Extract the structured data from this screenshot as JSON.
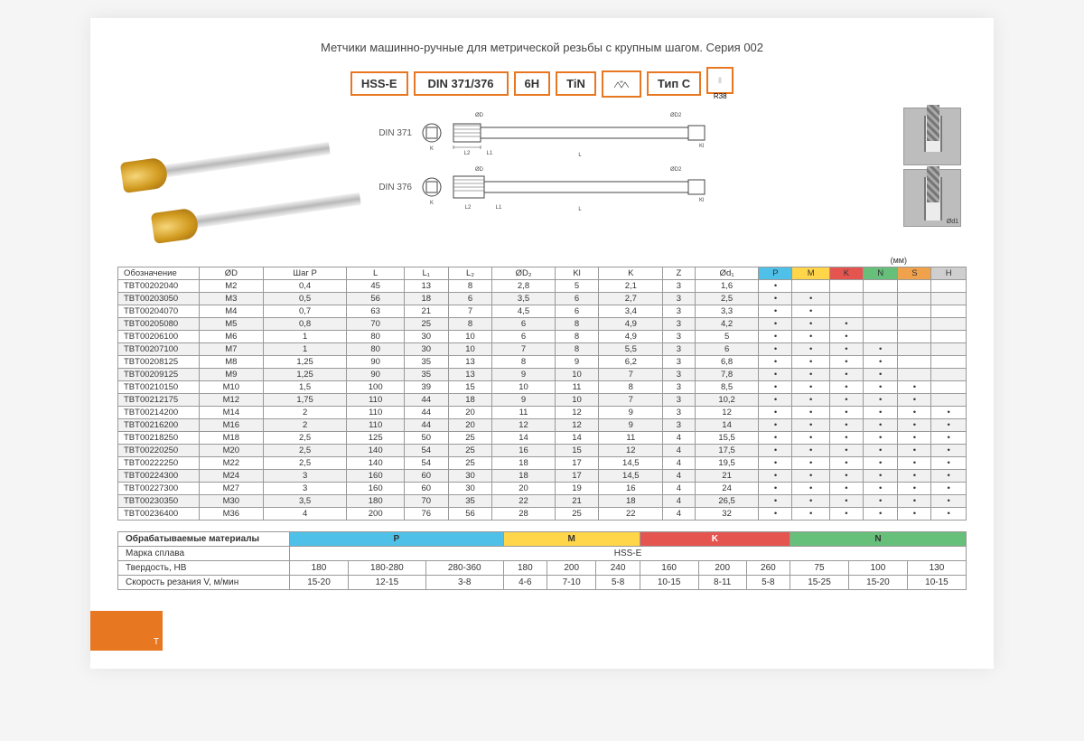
{
  "title": "Метчики машинно-ручные для метрической резьбы с крупным шагом. Серия 002",
  "spec_boxes": [
    "HSS-E",
    "DIN 371/376",
    "6H",
    "TiN"
  ],
  "spec_type": "Тип C",
  "spec_r": "R38",
  "din_labels": [
    "DIN 371",
    "DIN 376"
  ],
  "units": "(мм)",
  "orange_tab": "Т",
  "main_table": {
    "columns": [
      "Обозначение",
      "ØD",
      "Шаг P",
      "L",
      "L₁",
      "L₂",
      "ØD₂",
      "Kl",
      "K",
      "Z",
      "Ød₁",
      "P",
      "M",
      "K",
      "N",
      "S",
      "H"
    ],
    "mat_cols": [
      11,
      12,
      13,
      14,
      15,
      16
    ],
    "mat_classes": [
      "c-P",
      "c-M",
      "c-K",
      "c-N",
      "c-S",
      "c-H"
    ],
    "rows": [
      [
        "TBT00202040",
        "M2",
        "0,4",
        "45",
        "13",
        "8",
        "2,8",
        "5",
        "2,1",
        "3",
        "1,6",
        "•",
        "",
        "",
        "",
        "",
        ""
      ],
      [
        "TBT00203050",
        "M3",
        "0,5",
        "56",
        "18",
        "6",
        "3,5",
        "6",
        "2,7",
        "3",
        "2,5",
        "•",
        "•",
        "",
        "",
        "",
        ""
      ],
      [
        "TBT00204070",
        "M4",
        "0,7",
        "63",
        "21",
        "7",
        "4,5",
        "6",
        "3,4",
        "3",
        "3,3",
        "•",
        "•",
        "",
        "",
        "",
        ""
      ],
      [
        "TBT00205080",
        "M5",
        "0,8",
        "70",
        "25",
        "8",
        "6",
        "8",
        "4,9",
        "3",
        "4,2",
        "•",
        "•",
        "•",
        "",
        "",
        ""
      ],
      [
        "TBT00206100",
        "M6",
        "1",
        "80",
        "30",
        "10",
        "6",
        "8",
        "4,9",
        "3",
        "5",
        "•",
        "•",
        "•",
        "",
        "",
        ""
      ],
      [
        "TBT00207100",
        "M7",
        "1",
        "80",
        "30",
        "10",
        "7",
        "8",
        "5,5",
        "3",
        "6",
        "•",
        "•",
        "•",
        "•",
        "",
        ""
      ],
      [
        "TBT00208125",
        "M8",
        "1,25",
        "90",
        "35",
        "13",
        "8",
        "9",
        "6,2",
        "3",
        "6,8",
        "•",
        "•",
        "•",
        "•",
        "",
        ""
      ],
      [
        "TBT00209125",
        "M9",
        "1,25",
        "90",
        "35",
        "13",
        "9",
        "10",
        "7",
        "3",
        "7,8",
        "•",
        "•",
        "•",
        "•",
        "",
        ""
      ],
      [
        "TBT00210150",
        "M10",
        "1,5",
        "100",
        "39",
        "15",
        "10",
        "11",
        "8",
        "3",
        "8,5",
        "•",
        "•",
        "•",
        "•",
        "•",
        ""
      ],
      [
        "TBT00212175",
        "M12",
        "1,75",
        "110",
        "44",
        "18",
        "9",
        "10",
        "7",
        "3",
        "10,2",
        "•",
        "•",
        "•",
        "•",
        "•",
        ""
      ],
      [
        "TBT00214200",
        "M14",
        "2",
        "110",
        "44",
        "20",
        "11",
        "12",
        "9",
        "3",
        "12",
        "•",
        "•",
        "•",
        "•",
        "•",
        "•"
      ],
      [
        "TBT00216200",
        "M16",
        "2",
        "110",
        "44",
        "20",
        "12",
        "12",
        "9",
        "3",
        "14",
        "•",
        "•",
        "•",
        "•",
        "•",
        "•"
      ],
      [
        "TBT00218250",
        "M18",
        "2,5",
        "125",
        "50",
        "25",
        "14",
        "14",
        "11",
        "4",
        "15,5",
        "•",
        "•",
        "•",
        "•",
        "•",
        "•"
      ],
      [
        "TBT00220250",
        "M20",
        "2,5",
        "140",
        "54",
        "25",
        "16",
        "15",
        "12",
        "4",
        "17,5",
        "•",
        "•",
        "•",
        "•",
        "•",
        "•"
      ],
      [
        "TBT00222250",
        "M22",
        "2,5",
        "140",
        "54",
        "25",
        "18",
        "17",
        "14,5",
        "4",
        "19,5",
        "•",
        "•",
        "•",
        "•",
        "•",
        "•"
      ],
      [
        "TBT00224300",
        "M24",
        "3",
        "160",
        "60",
        "30",
        "18",
        "17",
        "14,5",
        "4",
        "21",
        "•",
        "•",
        "•",
        "•",
        "•",
        "•"
      ],
      [
        "TBT00227300",
        "M27",
        "3",
        "160",
        "60",
        "30",
        "20",
        "19",
        "16",
        "4",
        "24",
        "•",
        "•",
        "•",
        "•",
        "•",
        "•"
      ],
      [
        "TBT00230350",
        "M30",
        "3,5",
        "180",
        "70",
        "35",
        "22",
        "21",
        "18",
        "4",
        "26,5",
        "•",
        "•",
        "•",
        "•",
        "•",
        "•"
      ],
      [
        "TBT00236400",
        "M36",
        "4",
        "200",
        "76",
        "56",
        "28",
        "25",
        "22",
        "4",
        "32",
        "•",
        "•",
        "•",
        "•",
        "•",
        "•"
      ]
    ]
  },
  "materials": {
    "header": "Обрабатываемые материалы",
    "groups": [
      "P",
      "M",
      "K",
      "N"
    ],
    "rows": [
      {
        "label": "Марка сплава",
        "span": "HSS-E"
      },
      {
        "label": "Твердость, HB",
        "cells": [
          "180",
          "180-280",
          "280-360",
          "180",
          "200",
          "240",
          "160",
          "200",
          "260",
          "75",
          "100",
          "130"
        ]
      },
      {
        "label": "Скорость резания V, м/мин",
        "cells": [
          "15-20",
          "12-15",
          "3-8",
          "4-6",
          "7-10",
          "5-8",
          "10-15",
          "8-11",
          "5-8",
          "15-25",
          "15-20",
          "10-15"
        ]
      }
    ]
  },
  "colors": {
    "accent": "#e87722",
    "P": "#4fc0e8",
    "M": "#ffd54a",
    "K": "#e5554f",
    "N": "#66c07a",
    "S": "#f0a14b",
    "H": "#cfcfcf",
    "grid": "#999999",
    "bg": "#ffffff",
    "alt_row": "#f1f1f1"
  }
}
